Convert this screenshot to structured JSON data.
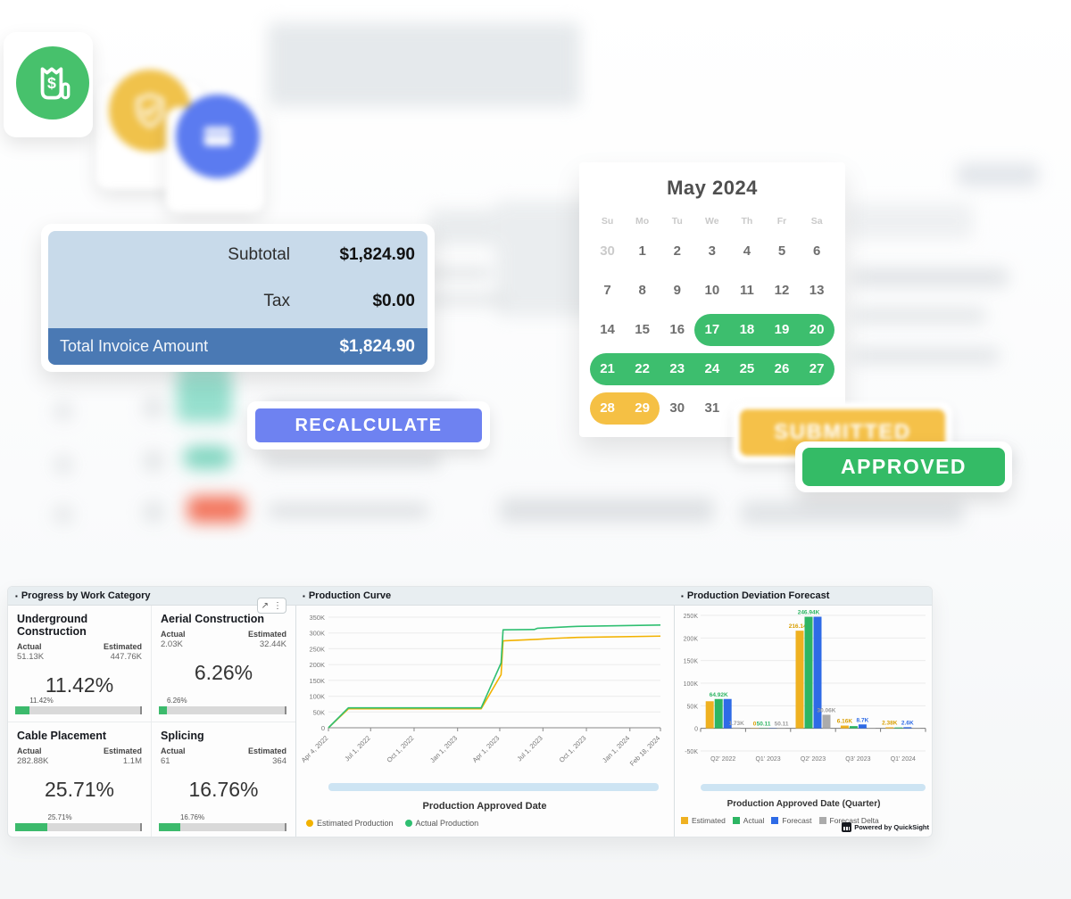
{
  "icons": {
    "invoice_icon": "receipt-dollar",
    "shield_icon": "shield-check",
    "card_icon": "credit-card",
    "expand_glyph": "↗",
    "menu_glyph": "⋮",
    "bullet_glyph": "▪"
  },
  "invoice_summary": {
    "subtotal_label": "Subtotal",
    "subtotal_value": "$1,824.90",
    "tax_label": "Tax",
    "tax_value": "$0.00",
    "total_label": "Total Invoice Amount",
    "total_value": "$1,824.90"
  },
  "recalculate_button": {
    "label": "RECALCULATE"
  },
  "status_badges": {
    "submitted": "SUBMITTED",
    "approved": "APPROVED"
  },
  "calendar": {
    "title": "May 2024",
    "weekdays": [
      "Su",
      "Mo",
      "Tu",
      "We",
      "Th",
      "Fr",
      "Sa"
    ],
    "weeks": [
      [
        {
          "d": "30",
          "muted": true
        },
        {
          "d": "1"
        },
        {
          "d": "2"
        },
        {
          "d": "3"
        },
        {
          "d": "4"
        },
        {
          "d": "5"
        },
        {
          "d": "6"
        }
      ],
      [
        {
          "d": "7"
        },
        {
          "d": "8"
        },
        {
          "d": "9"
        },
        {
          "d": "10"
        },
        {
          "d": "11"
        },
        {
          "d": "12"
        },
        {
          "d": "13"
        }
      ],
      [
        {
          "d": "14"
        },
        {
          "d": "15"
        },
        {
          "d": "16"
        },
        {
          "d": "17",
          "hl": "green"
        },
        {
          "d": "18",
          "hl": "green"
        },
        {
          "d": "19",
          "hl": "green"
        },
        {
          "d": "20",
          "hl": "green"
        }
      ],
      [
        {
          "d": "21",
          "hl": "green"
        },
        {
          "d": "22",
          "hl": "green"
        },
        {
          "d": "23",
          "hl": "green"
        },
        {
          "d": "24",
          "hl": "green"
        },
        {
          "d": "25",
          "hl": "green"
        },
        {
          "d": "26",
          "hl": "green"
        },
        {
          "d": "27",
          "hl": "green"
        }
      ],
      [
        {
          "d": "28",
          "hl": "yellow"
        },
        {
          "d": "29",
          "hl": "yellow"
        },
        {
          "d": "30"
        },
        {
          "d": "31"
        },
        {
          "d": ""
        },
        {
          "d": ""
        },
        {
          "d": ""
        }
      ]
    ],
    "highlight_colors": {
      "green": "#3DBE6E",
      "yellow": "#F5C044"
    }
  },
  "dashboard": {
    "progress_panel": {
      "title": "Progress by Work Category",
      "actual_label": "Actual",
      "estimated_label": "Estimated",
      "tiles": [
        {
          "name": "Underground Construction",
          "actual": "51.13K",
          "estimated": "447.76K",
          "percent": "11.42%",
          "percent_value": 11.42
        },
        {
          "name": "Aerial Construction",
          "actual": "2.03K",
          "estimated": "32.44K",
          "percent": "6.26%",
          "percent_value": 6.26
        },
        {
          "name": "Cable Placement",
          "actual": "282.88K",
          "estimated": "1.1M",
          "percent": "25.71%",
          "percent_value": 25.71
        },
        {
          "name": "Splicing",
          "actual": "61",
          "estimated": "364",
          "percent": "16.76%",
          "percent_value": 16.76
        }
      ],
      "bar_fill_color": "#3CBA6C"
    },
    "curve_panel": {
      "title": "Production Curve",
      "xaxis_label": "Production Approved Date"
    },
    "forecast_panel": {
      "title": "Production Deviation Forecast",
      "xaxis_label": "Production Approved Date (Quarter)",
      "powered_by": "Powered by QuickSight"
    }
  },
  "chart_data": [
    {
      "type": "line",
      "title": "Production Curve",
      "xlabel": "Production Approved Date",
      "ylabel": "",
      "unit": "K",
      "ylim": [
        0,
        350
      ],
      "y_ticks": [
        350,
        300,
        250,
        200,
        150,
        100,
        50,
        0
      ],
      "x_ticks": [
        "Apr 4, 2022",
        "Jul 1, 2022",
        "Oct 1, 2022",
        "Jan 1, 2023",
        "Apr 1, 2023",
        "Jul 1, 2023",
        "Oct 1, 2023",
        "Jan 1, 2024",
        "Feb 18, 2024"
      ],
      "x_tick_pos": [
        0,
        12.7,
        25.8,
        38.9,
        51.6,
        64.6,
        77.7,
        90.8,
        100
      ],
      "grid": true,
      "legend_position": "bottom-left",
      "series": [
        {
          "name": "Estimated Production",
          "color": "#F2B200",
          "points": [
            [
              0,
              0
            ],
            [
              6,
              60
            ],
            [
              46,
              60
            ],
            [
              52,
              168
            ],
            [
              52.6,
              275
            ],
            [
              63,
              280
            ],
            [
              68,
              283
            ],
            [
              75,
              286
            ],
            [
              100,
              290
            ]
          ]
        },
        {
          "name": "Actual Production",
          "color": "#2FBF71",
          "points": [
            [
              0,
              0
            ],
            [
              6,
              63
            ],
            [
              46,
              63
            ],
            [
              52,
              205
            ],
            [
              52.6,
              310
            ],
            [
              62,
              311
            ],
            [
              63,
              315
            ],
            [
              75,
              321
            ],
            [
              100,
              325
            ]
          ]
        }
      ]
    },
    {
      "type": "bar",
      "title": "Production Deviation Forecast",
      "xlabel": "Production Approved Date (Quarter)",
      "ylabel": "",
      "unit": "K",
      "ylim": [
        -50,
        250
      ],
      "y_ticks": [
        250,
        200,
        150,
        100,
        50,
        0,
        -50
      ],
      "grid": true,
      "legend_position": "bottom-left",
      "categories": [
        "Q2' 2022",
        "Q1' 2023",
        "Q2' 2023",
        "Q3' 2023",
        "Q1' 2024"
      ],
      "series": [
        {
          "name": "Estimated",
          "color": "#EFB121",
          "label_color": "#D99E00",
          "values": [
            60,
            0.05,
            216.14,
            6.16,
            2.38
          ],
          "labels": [
            "",
            "0",
            "216.14K",
            "6.16K",
            "2.38K"
          ]
        },
        {
          "name": "Actual",
          "color": "#2DB563",
          "label_color": "#2DB563",
          "values": [
            64.92,
            0.05,
            246.94,
            5,
            2
          ],
          "labels": [
            "64.92K",
            "50.11",
            "246.94K",
            "",
            ""
          ]
        },
        {
          "name": "Forecast",
          "color": "#2E6BE6",
          "label_color": "#2E6BE6",
          "values": [
            65,
            0.05,
            247,
            8.7,
            2.6
          ],
          "labels": [
            "",
            "",
            "",
            "8.7K",
            "2.6K"
          ]
        },
        {
          "name": "Forecast Delta",
          "color": "#ABABAB",
          "label_color": "#9B9B9B",
          "values": [
            1.73,
            0.05,
            30.06,
            0.9,
            0.2
          ],
          "labels": [
            "1.73K",
            "50.11",
            "30.06K",
            "",
            ""
          ]
        }
      ]
    }
  ]
}
